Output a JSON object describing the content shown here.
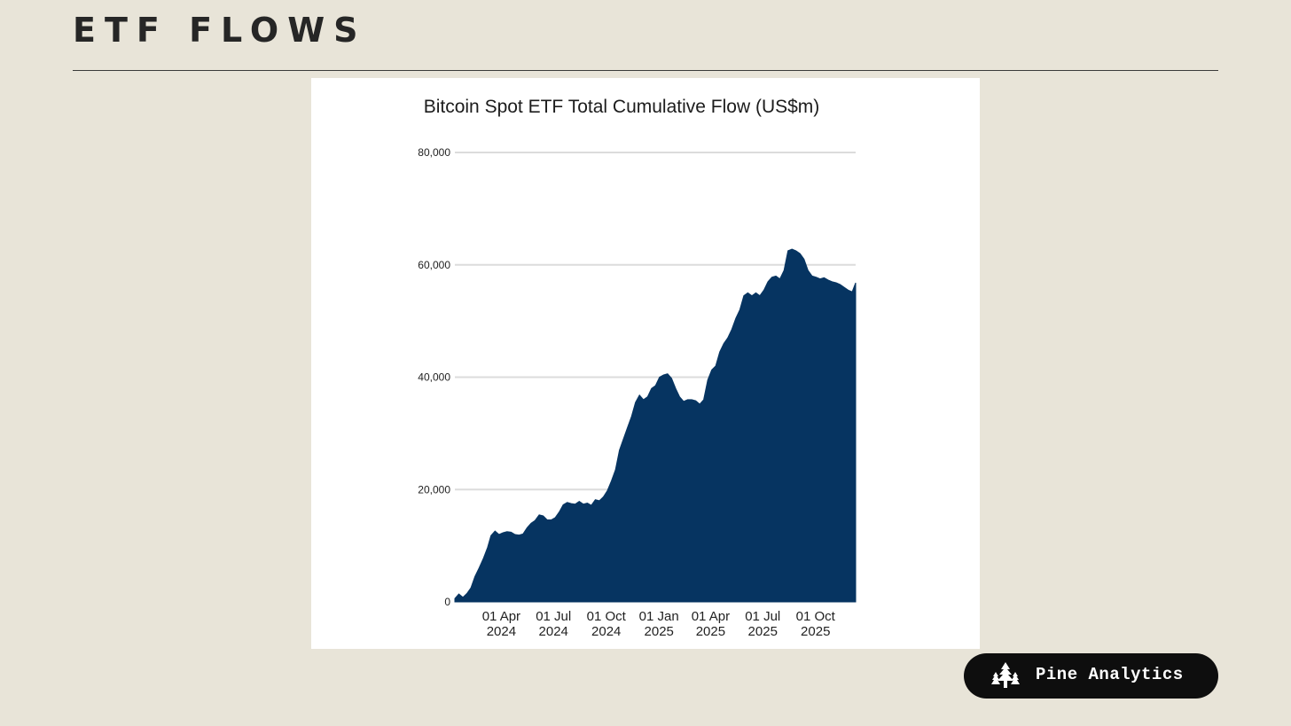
{
  "header": {
    "title": "ETF FLOWS"
  },
  "brand": {
    "name": "Pine Analytics",
    "icon": "pine-tree-icon"
  },
  "colors": {
    "background": "#e8e4d8",
    "area_fill": "#063461",
    "gridline": "#dcdcdc",
    "badge": "#0e0e0e"
  },
  "chart_data": {
    "type": "area",
    "title": "Bitcoin Spot ETF Total Cumulative Flow (US$m)",
    "xlabel": "",
    "ylabel": "",
    "ylim": [
      0,
      80000
    ],
    "yticks": [
      0,
      20000,
      40000,
      60000,
      80000
    ],
    "ytick_labels": [
      "0",
      "20,000",
      "40,000",
      "60,000",
      "80,000"
    ],
    "xlim": [
      "2024-01-11",
      "2025-12-10"
    ],
    "xticks": [
      {
        "date": "2024-04-01",
        "label": [
          "01 Apr",
          "2024"
        ]
      },
      {
        "date": "2024-07-01",
        "label": [
          "01 Jul",
          "2024"
        ]
      },
      {
        "date": "2024-10-01",
        "label": [
          "01 Oct",
          "2024"
        ]
      },
      {
        "date": "2025-01-01",
        "label": [
          "01 Jan",
          "2025"
        ]
      },
      {
        "date": "2025-04-01",
        "label": [
          "01 Apr",
          "2025"
        ]
      },
      {
        "date": "2025-07-01",
        "label": [
          "01 Jul",
          "2025"
        ]
      },
      {
        "date": "2025-10-01",
        "label": [
          "01 Oct",
          "2025"
        ]
      }
    ],
    "grid": true,
    "legend": "none",
    "series": [
      {
        "x": [
          "2024-01-11",
          "2024-01-18",
          "2024-01-25",
          "2024-02-01",
          "2024-02-08",
          "2024-02-15",
          "2024-02-22",
          "2024-03-01",
          "2024-03-08",
          "2024-03-14",
          "2024-03-21",
          "2024-03-28",
          "2024-04-04",
          "2024-04-11",
          "2024-04-18",
          "2024-04-25",
          "2024-05-02",
          "2024-05-09",
          "2024-05-16",
          "2024-05-23",
          "2024-05-30",
          "2024-06-06",
          "2024-06-13",
          "2024-06-20",
          "2024-06-27",
          "2024-07-04",
          "2024-07-11",
          "2024-07-18",
          "2024-07-25",
          "2024-08-01",
          "2024-08-08",
          "2024-08-15",
          "2024-08-22",
          "2024-08-29",
          "2024-09-05",
          "2024-09-12",
          "2024-09-19",
          "2024-09-26",
          "2024-10-03",
          "2024-10-10",
          "2024-10-17",
          "2024-10-24",
          "2024-10-31",
          "2024-11-07",
          "2024-11-14",
          "2024-11-21",
          "2024-11-28",
          "2024-12-05",
          "2024-12-12",
          "2024-12-19",
          "2024-12-26",
          "2025-01-02",
          "2025-01-09",
          "2025-01-16",
          "2025-01-23",
          "2025-01-30",
          "2025-02-06",
          "2025-02-13",
          "2025-02-20",
          "2025-02-27",
          "2025-03-06",
          "2025-03-13",
          "2025-03-20",
          "2025-03-27",
          "2025-04-03",
          "2025-04-10",
          "2025-04-17",
          "2025-04-24",
          "2025-05-01",
          "2025-05-08",
          "2025-05-15",
          "2025-05-22",
          "2025-05-29",
          "2025-06-05",
          "2025-06-12",
          "2025-06-19",
          "2025-06-26",
          "2025-07-03",
          "2025-07-10",
          "2025-07-17",
          "2025-07-24",
          "2025-07-31",
          "2025-08-07",
          "2025-08-14",
          "2025-08-21",
          "2025-08-28",
          "2025-09-04",
          "2025-09-11",
          "2025-09-18",
          "2025-09-25",
          "2025-10-02",
          "2025-10-09",
          "2025-10-16",
          "2025-10-23",
          "2025-10-30",
          "2025-11-06",
          "2025-11-13",
          "2025-11-20",
          "2025-11-27",
          "2025-12-04",
          "2025-12-10"
        ],
        "values": [
          600,
          1400,
          800,
          1500,
          2500,
          4500,
          6000,
          7800,
          9700,
          11800,
          12600,
          12000,
          12300,
          12500,
          12400,
          12000,
          11900,
          12100,
          13200,
          14000,
          14500,
          15500,
          15300,
          14600,
          14600,
          15000,
          16000,
          17300,
          17700,
          17500,
          17400,
          17900,
          17400,
          17600,
          17200,
          18200,
          18000,
          18700,
          19800,
          21500,
          23500,
          27000,
          29000,
          31000,
          33000,
          35500,
          36800,
          36000,
          36500,
          38000,
          38500,
          40000,
          40400,
          40600,
          39800,
          38000,
          36500,
          35700,
          36000,
          36000,
          35800,
          35200,
          36000,
          39500,
          41300,
          42000,
          44500,
          46000,
          47000,
          48500,
          50500,
          52000,
          54500,
          55000,
          54500,
          55000,
          54500,
          55500,
          57000,
          57800,
          58000,
          57500,
          59000,
          62500,
          62800,
          62500,
          62000,
          61000,
          59000,
          58000,
          57800,
          57500,
          57700,
          57300,
          57000,
          56800,
          56500,
          56000,
          55500,
          55200,
          56800
        ]
      }
    ]
  }
}
